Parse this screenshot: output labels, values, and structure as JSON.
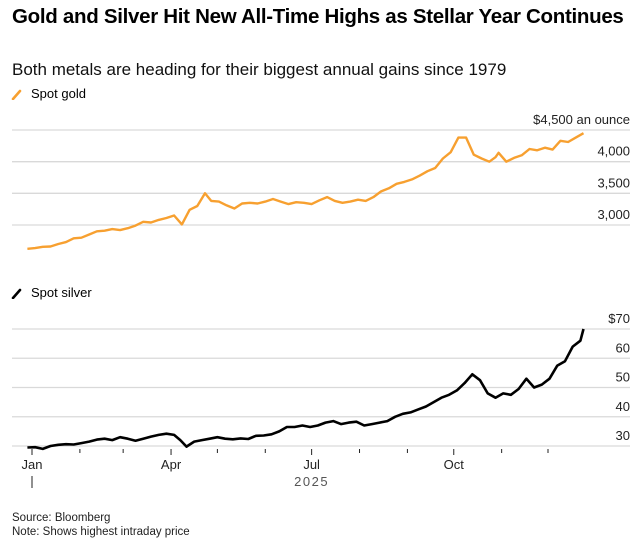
{
  "header": {
    "title": "Gold and Silver Hit New All-Time Highs as Stellar Year Continues",
    "subtitle": "Both metals are heading for their biggest annual gains since 1979"
  },
  "footer": {
    "source": "Source: Bloomberg",
    "note": "Note: Shows highest intraday price"
  },
  "colors": {
    "gold": "#f7a030",
    "silver": "#000000",
    "grid": "#d9d9d9"
  },
  "chart_data": [
    {
      "type": "line",
      "title": "Spot gold",
      "legend": "Spot gold",
      "legend_position": "top-left",
      "unit_label": "$4,500 an ounce",
      "ylim": [
        2550,
        4500
      ],
      "yticks": [
        4500,
        4000,
        3500,
        3000
      ],
      "ytick_labels": [
        "$4,500 an ounce",
        "4,000",
        "3,500",
        "3,000"
      ],
      "grid": true,
      "x_unit": "days since 2024-12-31",
      "x": [
        -3,
        2,
        7,
        12,
        17,
        22,
        27,
        32,
        37,
        42,
        47,
        52,
        57,
        62,
        67,
        72,
        77,
        82,
        87,
        92,
        97,
        102,
        107,
        112,
        116,
        121,
        126,
        131,
        136,
        141,
        146,
        151,
        156,
        161,
        166,
        171,
        176,
        181,
        186,
        191,
        196,
        201,
        206,
        211,
        216,
        221,
        226,
        231,
        236,
        241,
        246,
        251,
        256,
        261,
        266,
        271,
        276,
        281,
        286,
        291,
        296,
        300,
        302,
        307,
        312,
        317,
        322,
        327,
        332,
        337,
        342,
        347,
        352,
        357
      ],
      "values": [
        2625,
        2635,
        2655,
        2660,
        2700,
        2730,
        2790,
        2800,
        2850,
        2900,
        2910,
        2935,
        2920,
        2950,
        2990,
        3050,
        3040,
        3080,
        3110,
        3150,
        3010,
        3240,
        3300,
        3500,
        3380,
        3370,
        3310,
        3260,
        3340,
        3350,
        3340,
        3370,
        3410,
        3370,
        3330,
        3360,
        3350,
        3330,
        3390,
        3440,
        3380,
        3350,
        3370,
        3400,
        3380,
        3440,
        3530,
        3580,
        3650,
        3680,
        3720,
        3780,
        3850,
        3900,
        4050,
        4150,
        4380,
        4380,
        4110,
        4050,
        4000,
        4070,
        4140,
        4000,
        4060,
        4100,
        4200,
        4180,
        4220,
        4190,
        4330,
        4310,
        4380,
        4450
      ]
    },
    {
      "type": "line",
      "title": "Spot silver",
      "legend": "Spot silver",
      "legend_position": "top-left",
      "unit_label": "$70",
      "ylim": [
        27,
        71
      ],
      "yticks": [
        70,
        60,
        50,
        40,
        30
      ],
      "ytick_labels": [
        "$70",
        "60",
        "50",
        "40",
        "30"
      ],
      "grid": true,
      "x_unit": "days since 2024-12-31",
      "x": [
        -3,
        2,
        7,
        12,
        17,
        22,
        27,
        32,
        37,
        42,
        47,
        52,
        57,
        62,
        67,
        72,
        77,
        82,
        87,
        92,
        96,
        100,
        105,
        110,
        115,
        120,
        125,
        130,
        135,
        140,
        145,
        150,
        155,
        160,
        165,
        170,
        175,
        180,
        185,
        190,
        195,
        200,
        205,
        210,
        215,
        220,
        225,
        230,
        235,
        240,
        245,
        250,
        255,
        260,
        265,
        270,
        275,
        280,
        285,
        290,
        295,
        300,
        305,
        310,
        315,
        320,
        325,
        330,
        335,
        340,
        345,
        350,
        355,
        357
      ],
      "values": [
        29.5,
        29.6,
        29.0,
        30.0,
        30.4,
        30.6,
        30.5,
        31.0,
        31.5,
        32.2,
        32.5,
        32.0,
        33.0,
        32.5,
        31.8,
        32.5,
        33.2,
        33.8,
        34.2,
        33.8,
        32.0,
        29.8,
        31.5,
        32.0,
        32.5,
        33.0,
        32.5,
        32.3,
        32.6,
        32.4,
        33.5,
        33.6,
        34.0,
        35.0,
        36.5,
        36.5,
        37.0,
        36.5,
        37.0,
        38.0,
        38.5,
        37.5,
        38.0,
        38.3,
        37.0,
        37.5,
        38.0,
        38.5,
        40.0,
        41.0,
        41.5,
        42.5,
        43.5,
        45.0,
        46.5,
        47.5,
        49.0,
        51.5,
        54.5,
        52.5,
        48.0,
        46.5,
        48.0,
        47.5,
        49.5,
        53.0,
        50.0,
        51.0,
        53.0,
        57.5,
        59.0,
        64.0,
        66.0,
        70.0
      ]
    }
  ],
  "x_axis": {
    "tick_days": [
      0,
      31,
      59,
      90,
      120,
      151,
      181,
      212,
      243,
      273,
      304,
      334
    ],
    "labels": [
      {
        "day": 0,
        "text": "Jan"
      },
      {
        "day": 90,
        "text": "Apr"
      },
      {
        "day": 181,
        "text": "Jul"
      },
      {
        "day": 273,
        "text": "Oct"
      }
    ],
    "year_label": "2025"
  }
}
